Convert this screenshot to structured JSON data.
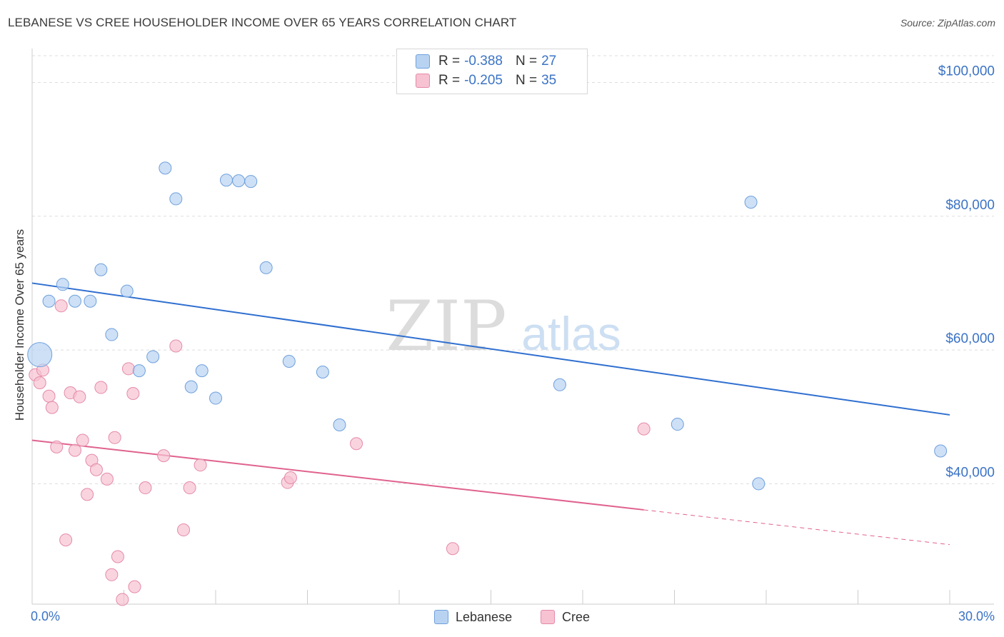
{
  "header": {
    "title": "LEBANESE VS CREE HOUSEHOLDER INCOME OVER 65 YEARS CORRELATION CHART",
    "source": "Source: ZipAtlas.com"
  },
  "watermark": {
    "zip": "ZIP",
    "atlas": "atlas"
  },
  "legend": {
    "rows": [
      {
        "r_label": "R =",
        "r_value": "-0.388",
        "n_label": "N =",
        "n_value": "27"
      },
      {
        "r_label": "R =",
        "r_value": "-0.205",
        "n_label": "N =",
        "n_value": "35"
      }
    ],
    "bottom": [
      {
        "label": "Lebanese"
      },
      {
        "label": "Cree"
      }
    ]
  },
  "colors": {
    "lebanese_fill": "#b8d3f2",
    "lebanese_stroke": "#6fa0dc",
    "lebanese_line": "#2f6fd0",
    "cree_fill": "#f7c2d2",
    "cree_stroke": "#e58aa8",
    "cree_line": "#e0628e",
    "tick_label": "#3b73c5",
    "grid": "#dddddd"
  },
  "chart_data": {
    "type": "scatter",
    "title": "LEBANESE VS CREE HOUSEHOLDER INCOME OVER 65 YEARS CORRELATION CHART",
    "xlabel": "",
    "ylabel": "Householder Income Over 65 years",
    "xlim": [
      0,
      30
    ],
    "ylim": [
      22000,
      104000
    ],
    "x_tick_labels": [
      "0.0%",
      "30.0%"
    ],
    "y_ticks": [
      40000,
      60000,
      80000,
      100000
    ],
    "y_tick_labels": [
      "$40,000",
      "$60,000",
      "$80,000",
      "$100,000"
    ],
    "series": [
      {
        "name": "Lebanese",
        "r": -0.388,
        "n": 27,
        "trend": {
          "x": [
            0,
            30
          ],
          "y": [
            70000,
            50300
          ]
        },
        "points": [
          {
            "x": 0.25,
            "y": 59300,
            "size": "large"
          },
          {
            "x": 0.55,
            "y": 67300
          },
          {
            "x": 1.0,
            "y": 69800
          },
          {
            "x": 1.4,
            "y": 67300
          },
          {
            "x": 1.9,
            "y": 67300
          },
          {
            "x": 2.25,
            "y": 72000
          },
          {
            "x": 2.6,
            "y": 62300
          },
          {
            "x": 3.1,
            "y": 68800
          },
          {
            "x": 3.5,
            "y": 56900
          },
          {
            "x": 3.95,
            "y": 59000
          },
          {
            "x": 4.35,
            "y": 87200
          },
          {
            "x": 4.7,
            "y": 82600
          },
          {
            "x": 5.2,
            "y": 54500
          },
          {
            "x": 5.55,
            "y": 56900
          },
          {
            "x": 6.0,
            "y": 52800
          },
          {
            "x": 6.35,
            "y": 85400
          },
          {
            "x": 6.75,
            "y": 85300
          },
          {
            "x": 7.15,
            "y": 85200
          },
          {
            "x": 7.65,
            "y": 72300
          },
          {
            "x": 8.4,
            "y": 58300
          },
          {
            "x": 9.5,
            "y": 56700
          },
          {
            "x": 10.05,
            "y": 48800
          },
          {
            "x": 17.25,
            "y": 54800
          },
          {
            "x": 21.1,
            "y": 48900
          },
          {
            "x": 23.5,
            "y": 82100
          },
          {
            "x": 23.75,
            "y": 40000
          },
          {
            "x": 29.7,
            "y": 44900
          }
        ]
      },
      {
        "name": "Cree",
        "r": -0.205,
        "n": 35,
        "trend": {
          "x": [
            0,
            20.0
          ],
          "y": [
            46500,
            36100
          ]
        },
        "trend_dashed": {
          "x": [
            20.0,
            30
          ],
          "y": [
            36100,
            30900
          ]
        },
        "points": [
          {
            "x": 0.1,
            "y": 56300
          },
          {
            "x": 0.25,
            "y": 55100
          },
          {
            "x": 0.35,
            "y": 57000
          },
          {
            "x": 0.55,
            "y": 53100
          },
          {
            "x": 0.65,
            "y": 51400
          },
          {
            "x": 0.8,
            "y": 45500
          },
          {
            "x": 0.95,
            "y": 66600
          },
          {
            "x": 1.1,
            "y": 31600
          },
          {
            "x": 1.25,
            "y": 53600
          },
          {
            "x": 1.4,
            "y": 45000
          },
          {
            "x": 1.55,
            "y": 53000
          },
          {
            "x": 1.65,
            "y": 46500
          },
          {
            "x": 1.8,
            "y": 38400
          },
          {
            "x": 1.95,
            "y": 43500
          },
          {
            "x": 2.1,
            "y": 42100
          },
          {
            "x": 2.25,
            "y": 54400
          },
          {
            "x": 2.45,
            "y": 40700
          },
          {
            "x": 2.6,
            "y": 26400
          },
          {
            "x": 2.7,
            "y": 46900
          },
          {
            "x": 2.8,
            "y": 29100
          },
          {
            "x": 2.95,
            "y": 22700
          },
          {
            "x": 3.15,
            "y": 57200
          },
          {
            "x": 3.3,
            "y": 53500
          },
          {
            "x": 3.35,
            "y": 24600
          },
          {
            "x": 3.7,
            "y": 39400
          },
          {
            "x": 4.3,
            "y": 44200
          },
          {
            "x": 4.7,
            "y": 60600
          },
          {
            "x": 4.95,
            "y": 33100
          },
          {
            "x": 5.15,
            "y": 39400
          },
          {
            "x": 5.5,
            "y": 42800
          },
          {
            "x": 8.35,
            "y": 40200
          },
          {
            "x": 8.45,
            "y": 40900
          },
          {
            "x": 10.6,
            "y": 46000
          },
          {
            "x": 13.75,
            "y": 30300
          },
          {
            "x": 20.0,
            "y": 48200
          }
        ]
      }
    ]
  }
}
